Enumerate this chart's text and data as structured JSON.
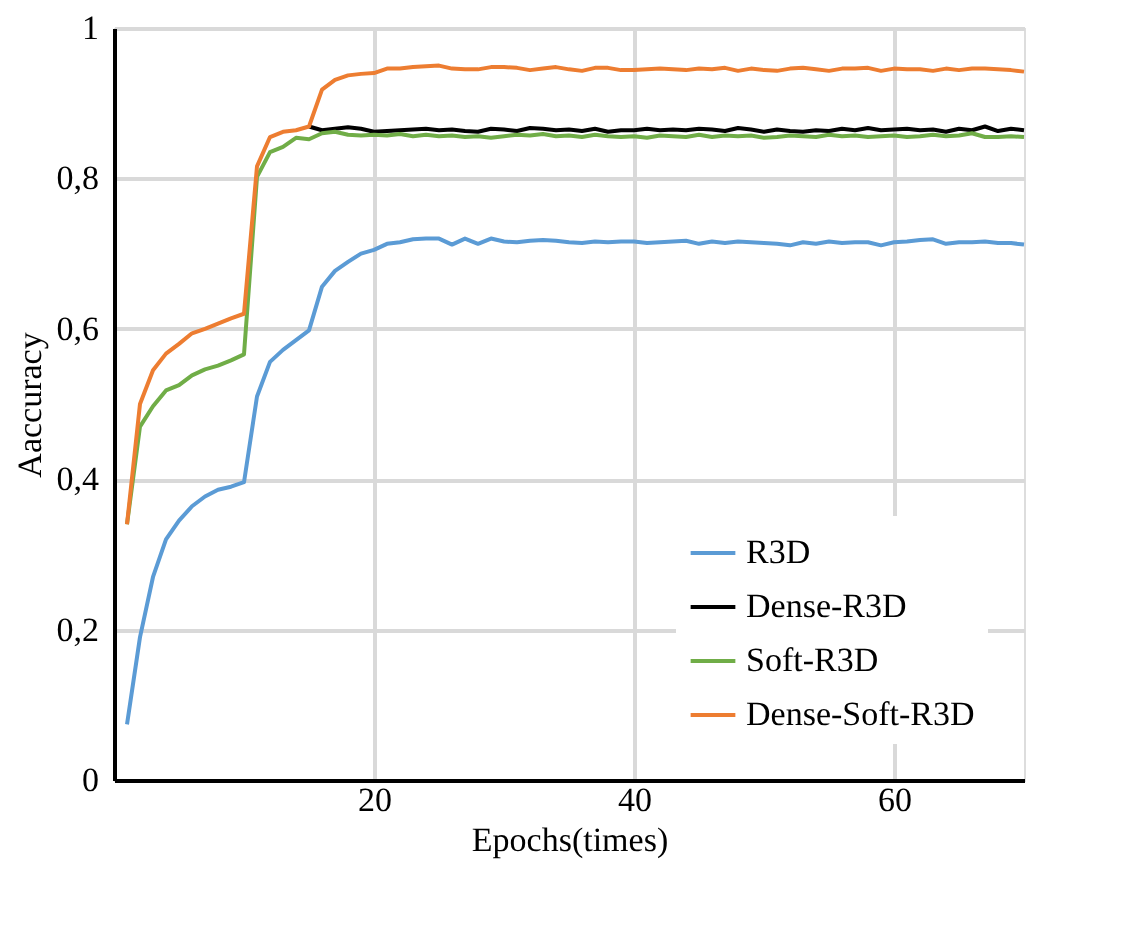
{
  "chart_data": {
    "type": "line",
    "xlabel": "Epochs(times)",
    "ylabel": "Aaccuracy",
    "x": [
      1,
      2,
      3,
      4,
      5,
      6,
      7,
      8,
      9,
      10,
      11,
      12,
      13,
      14,
      15,
      16,
      17,
      18,
      19,
      20,
      21,
      22,
      23,
      24,
      25,
      26,
      27,
      28,
      29,
      30,
      31,
      32,
      33,
      34,
      35,
      36,
      37,
      38,
      39,
      40,
      41,
      42,
      43,
      44,
      45,
      46,
      47,
      48,
      49,
      50,
      51,
      52,
      53,
      54,
      55,
      56,
      57,
      58,
      59,
      60,
      61,
      62,
      63,
      64,
      65,
      66,
      67,
      68,
      69,
      70
    ],
    "series": [
      {
        "name": "R3D",
        "color": "#5b9bd5",
        "values": [
          0.074,
          0.19,
          0.27,
          0.32,
          0.345,
          0.364,
          0.377,
          0.386,
          0.39,
          0.396,
          0.51,
          0.556,
          0.572,
          0.585,
          0.598,
          0.656,
          0.677,
          0.689,
          0.7,
          0.705,
          0.713,
          0.715,
          0.719,
          0.72,
          0.72,
          0.712,
          0.72,
          0.713,
          0.72,
          0.716,
          0.715,
          0.717,
          0.718,
          0.717,
          0.715,
          0.714,
          0.716,
          0.715,
          0.716,
          0.716,
          0.714,
          0.715,
          0.716,
          0.717,
          0.713,
          0.716,
          0.714,
          0.716,
          0.715,
          0.714,
          0.713,
          0.711,
          0.715,
          0.713,
          0.716,
          0.714,
          0.715,
          0.715,
          0.711,
          0.715,
          0.716,
          0.718,
          0.719,
          0.713,
          0.715,
          0.715,
          0.716,
          0.714,
          0.714,
          0.712
        ]
      },
      {
        "name": "Dense-R3D",
        "color": "#000000",
        "values": [
          null,
          null,
          null,
          null,
          null,
          null,
          null,
          null,
          null,
          null,
          null,
          null,
          null,
          null,
          0.869,
          0.864,
          0.866,
          0.868,
          0.866,
          0.862,
          0.863,
          0.864,
          0.865,
          0.866,
          0.864,
          0.865,
          0.863,
          0.862,
          0.866,
          0.865,
          0.863,
          0.867,
          0.866,
          0.864,
          0.865,
          0.863,
          0.866,
          0.862,
          0.864,
          0.864,
          0.866,
          0.864,
          0.865,
          0.864,
          0.866,
          0.865,
          0.863,
          0.867,
          0.865,
          0.862,
          0.865,
          0.863,
          0.862,
          0.864,
          0.863,
          0.866,
          0.864,
          0.867,
          0.864,
          0.865,
          0.866,
          0.864,
          0.865,
          0.862,
          0.866,
          0.864,
          0.869,
          0.863,
          0.866,
          0.864
        ]
      },
      {
        "name": "Soft-R3D",
        "color": "#70ad47",
        "values": [
          0.34,
          0.47,
          0.497,
          0.518,
          0.525,
          0.538,
          0.546,
          0.551,
          0.558,
          0.566,
          0.802,
          0.835,
          0.842,
          0.854,
          0.852,
          0.86,
          0.862,
          0.858,
          0.857,
          0.858,
          0.857,
          0.859,
          0.856,
          0.858,
          0.856,
          0.857,
          0.855,
          0.856,
          0.854,
          0.856,
          0.858,
          0.857,
          0.859,
          0.856,
          0.857,
          0.855,
          0.858,
          0.856,
          0.855,
          0.856,
          0.854,
          0.857,
          0.856,
          0.855,
          0.858,
          0.855,
          0.857,
          0.856,
          0.857,
          0.854,
          0.855,
          0.857,
          0.856,
          0.855,
          0.858,
          0.856,
          0.857,
          0.855,
          0.856,
          0.857,
          0.855,
          0.856,
          0.858,
          0.856,
          0.857,
          0.86,
          0.855,
          0.855,
          0.856,
          0.855
        ]
      },
      {
        "name": "Dense-Soft-R3D",
        "color": "#ed7d31",
        "values": [
          0.34,
          0.5,
          0.545,
          0.567,
          0.58,
          0.594,
          0.6,
          0.607,
          0.614,
          0.62,
          0.816,
          0.855,
          0.862,
          0.864,
          0.869,
          0.918,
          0.931,
          0.937,
          0.939,
          0.94,
          0.946,
          0.946,
          0.948,
          0.949,
          0.95,
          0.946,
          0.945,
          0.945,
          0.948,
          0.948,
          0.947,
          0.944,
          0.946,
          0.948,
          0.945,
          0.943,
          0.947,
          0.947,
          0.944,
          0.944,
          0.945,
          0.946,
          0.945,
          0.944,
          0.946,
          0.945,
          0.947,
          0.943,
          0.946,
          0.944,
          0.943,
          0.946,
          0.947,
          0.945,
          0.943,
          0.946,
          0.946,
          0.947,
          0.943,
          0.946,
          0.945,
          0.945,
          0.943,
          0.946,
          0.944,
          0.946,
          0.946,
          0.945,
          0.944,
          0.942
        ]
      }
    ],
    "xlim": [
      0,
      70
    ],
    "xticks": [
      20,
      40,
      60
    ],
    "ylim": [
      0,
      1
    ],
    "yticks": [
      {
        "value": 0,
        "label": "0"
      },
      {
        "value": 0.2,
        "label": "0,2"
      },
      {
        "value": 0.4,
        "label": "0,4"
      },
      {
        "value": 0.6,
        "label": "0,6"
      },
      {
        "value": 0.8,
        "label": "0,8"
      },
      {
        "value": 1,
        "label": "1"
      }
    ],
    "grid": true,
    "legend": "bottom right",
    "marker": "none",
    "line_style": "solid"
  }
}
